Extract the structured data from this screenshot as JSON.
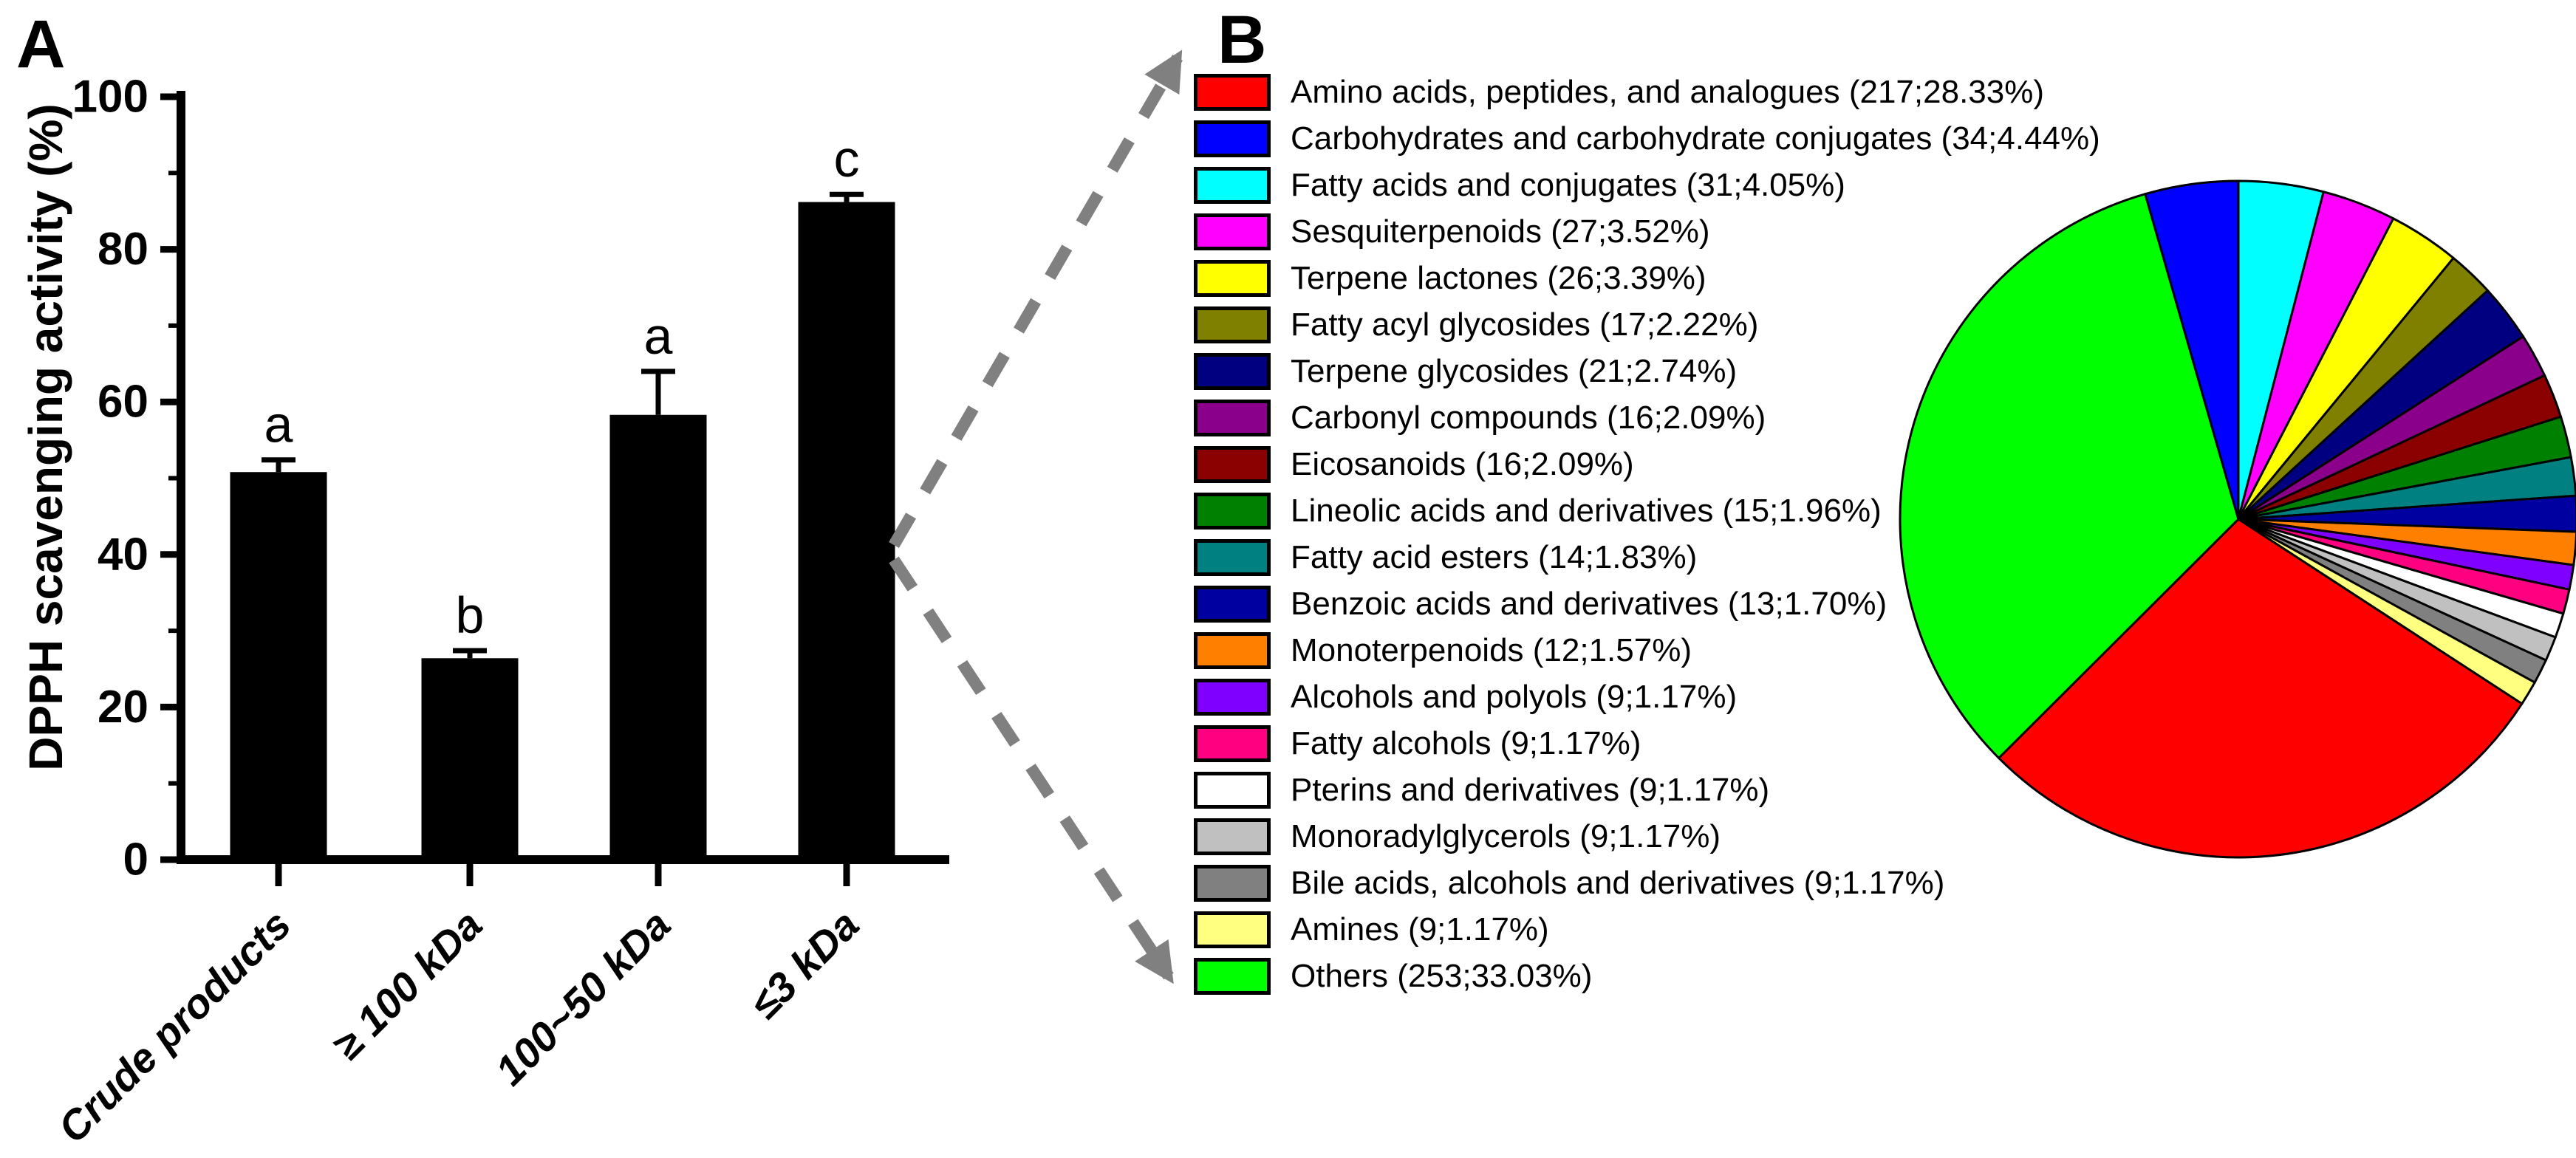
{
  "figure": {
    "panel_a_label": "A",
    "panel_b_label": "B",
    "connector_color": "#808080"
  },
  "chart_data": [
    {
      "type": "bar",
      "title": "",
      "xlabel": "",
      "ylabel": "DPPH scavenging activity (%)",
      "ylim": [
        0,
        100
      ],
      "yticks": [
        0,
        20,
        40,
        60,
        80,
        100
      ],
      "minor_yticks": [
        10,
        30,
        50,
        70,
        90
      ],
      "grid": false,
      "bar_color": "#000000",
      "categories": [
        "Crude products",
        "≥ 100 kDa",
        "100~50 kDa",
        "≤3 kDa"
      ],
      "values": [
        50.8,
        26.4,
        58.3,
        86.2
      ],
      "errors": [
        1.6,
        1.0,
        5.7,
        1.0
      ],
      "sig_letters": [
        "a",
        "b",
        "a",
        "c"
      ]
    },
    {
      "type": "pie",
      "title": "",
      "legend_position": "left-of-pie",
      "start_angle_deg_clockwise_from_top": 0,
      "slice_order_clockwise_from_top": [
        2,
        3,
        4,
        5,
        6,
        7,
        8,
        9,
        10,
        11,
        12,
        13,
        14,
        15,
        16,
        17,
        18,
        0,
        19,
        1
      ],
      "slices": [
        {
          "label": "Amino acids, peptides, and analogues",
          "count": 217,
          "pct": "28.33",
          "color": "#FF0000"
        },
        {
          "label": "Carbohydrates and carbohydrate conjugates",
          "count": 34,
          "pct": "4.44",
          "color": "#0000FF"
        },
        {
          "label": "Fatty acids and conjugates",
          "count": 31,
          "pct": "4.05",
          "color": "#00FFFF"
        },
        {
          "label": "Sesquiterpenoids",
          "count": 27,
          "pct": "3.52",
          "color": "#FF00FF"
        },
        {
          "label": "Terpene lactones",
          "count": 26,
          "pct": "3.39",
          "color": "#FFFF00"
        },
        {
          "label": "Fatty acyl glycosides",
          "count": 17,
          "pct": "2.22",
          "color": "#808000"
        },
        {
          "label": "Terpene glycosides",
          "count": 21,
          "pct": "2.74",
          "color": "#000080"
        },
        {
          "label": "Carbonyl compounds",
          "count": 16,
          "pct": "2.09",
          "color": "#8B008B"
        },
        {
          "label": "Eicosanoids",
          "count": 16,
          "pct": "2.09",
          "color": "#8B0000"
        },
        {
          "label": "Lineolic acids and derivatives",
          "count": 15,
          "pct": "1.96",
          "color": "#008000"
        },
        {
          "label": "Fatty acid esters",
          "count": 14,
          "pct": "1.83",
          "color": "#008080"
        },
        {
          "label": "Benzoic acids and derivatives",
          "count": 13,
          "pct": "1.70",
          "color": "#0000A0"
        },
        {
          "label": "Monoterpenoids",
          "count": 12,
          "pct": "1.57",
          "color": "#FF8000"
        },
        {
          "label": "Alcohols and polyols",
          "count": 9,
          "pct": "1.17",
          "color": "#8000FF"
        },
        {
          "label": "Fatty alcohols",
          "count": 9,
          "pct": "1.17",
          "color": "#FF0080"
        },
        {
          "label": "Pterins and derivatives",
          "count": 9,
          "pct": "1.17",
          "color": "#FFFFFF"
        },
        {
          "label": "Monoradylglycerols",
          "count": 9,
          "pct": "1.17",
          "color": "#C0C0C0"
        },
        {
          "label": "Bile acids, alcohols and derivatives",
          "count": 9,
          "pct": "1.17",
          "color": "#808080"
        },
        {
          "label": "Amines",
          "count": 9,
          "pct": "1.17",
          "color": "#FFFF80"
        },
        {
          "label": "Others",
          "count": 253,
          "pct": "33.03",
          "color": "#00FF00"
        }
      ]
    }
  ]
}
